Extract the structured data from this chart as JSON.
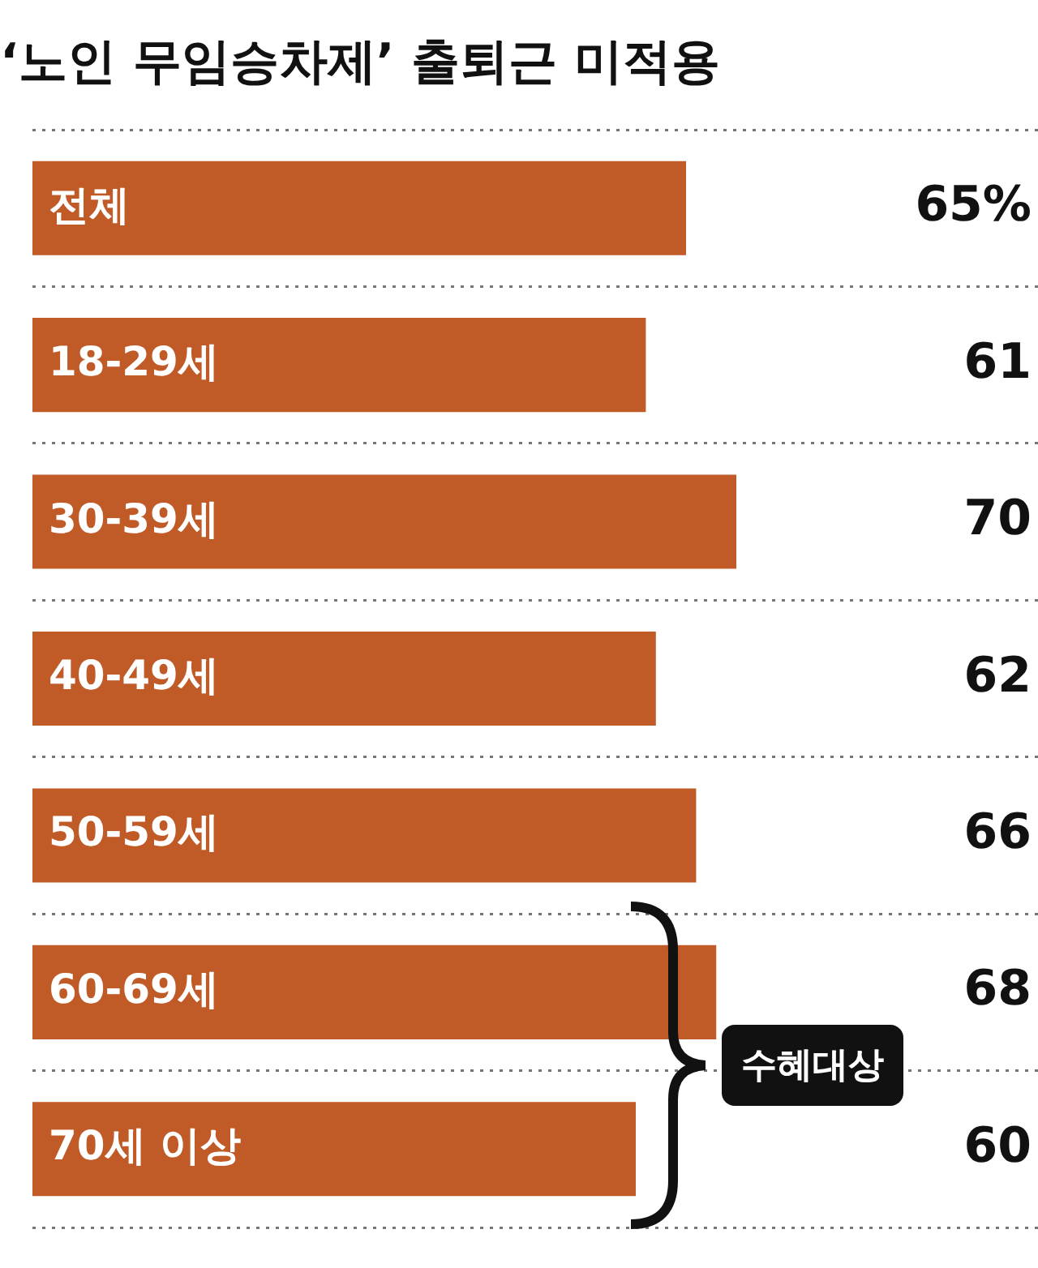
{
  "chart_data": {
    "type": "bar",
    "orientation": "horizontal",
    "title": "‘노인 무임승차제’ 출퇴근 미적용",
    "categories": [
      "전체",
      "18-29세",
      "30-39세",
      "40-49세",
      "50-59세",
      "60-69세",
      "70세 이상"
    ],
    "values": [
      65,
      61,
      70,
      62,
      66,
      68,
      60
    ],
    "value_labels": [
      "65%",
      "61",
      "70",
      "62",
      "66",
      "68",
      "60"
    ],
    "color": "#c05a27",
    "xlim": [
      0,
      100
    ],
    "grid": "y",
    "legend": false,
    "annotations": [
      "수혜대상"
    ]
  }
}
